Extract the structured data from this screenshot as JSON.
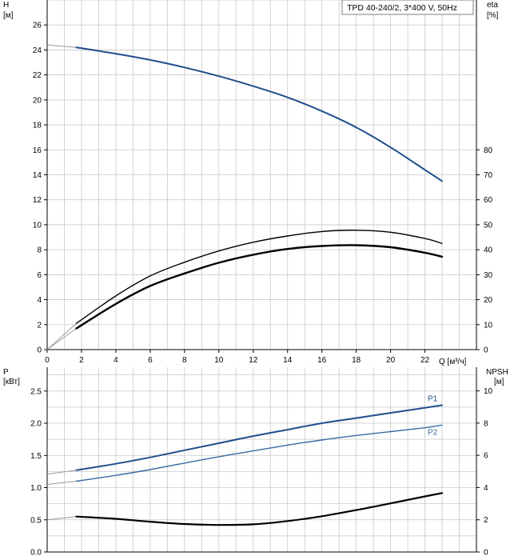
{
  "chart_data": [
    {
      "type": "line",
      "title": "TPD 40-240/2, 3*400 V, 50Hz",
      "xlabel": "Q [м³/ч]",
      "xlim": [
        0,
        25
      ],
      "xticks": [
        0,
        2,
        4,
        6,
        8,
        10,
        12,
        14,
        16,
        18,
        20,
        22
      ],
      "ylabel_left": "H",
      "ylabel_left_unit": "[м]",
      "ylim_left": [
        0,
        28
      ],
      "yticks_left": [
        0,
        2,
        4,
        6,
        8,
        10,
        12,
        14,
        16,
        18,
        20,
        22,
        24,
        26
      ],
      "ylabel_right": "eta",
      "ylabel_right_unit": "[%]",
      "ylim_right": [
        0,
        140
      ],
      "yticks_right": [
        0,
        10,
        20,
        30,
        40,
        50,
        60,
        70,
        80
      ],
      "grid": true,
      "series": [
        {
          "axis": "left",
          "color": "#1f4e8c",
          "x": [
            0,
            1.7,
            4,
            6,
            8,
            10,
            12,
            14,
            16,
            18,
            20,
            22,
            23
          ],
          "y": [
            24.4,
            24.2,
            23.7,
            23.2,
            22.6,
            21.9,
            21.1,
            20.2,
            19.1,
            17.8,
            16.2,
            14.4,
            13.5
          ],
          "extrapolated_until": 1.7
        },
        {
          "axis": "right",
          "color": "#000000",
          "x": [
            0,
            1.7,
            4,
            6,
            8,
            10,
            12,
            14,
            16,
            18,
            20,
            22,
            23
          ],
          "y": [
            0,
            10.5,
            21.5,
            29.5,
            35,
            39.5,
            43,
            45.5,
            47.3,
            47.8,
            47,
            44.5,
            42.5
          ],
          "extrapolated_until": 1.7
        },
        {
          "axis": "right",
          "color": "#000000",
          "x": [
            0,
            1.7,
            4,
            6,
            8,
            10,
            12,
            14,
            16,
            18,
            20,
            22,
            23
          ],
          "y": [
            0,
            8.5,
            18.3,
            25.5,
            30.5,
            34.8,
            38,
            40.3,
            41.5,
            41.8,
            41,
            38.8,
            37.2
          ],
          "extrapolated_until": 1.7
        }
      ]
    },
    {
      "type": "line",
      "ylabel_left": "P",
      "ylabel_left_unit": "[кВт]",
      "ylim_left": [
        0,
        2.87
      ],
      "yticks_left": [
        "0.0",
        "0.5",
        "1.0",
        "1.5",
        "2.0",
        "2.5"
      ],
      "ylabel_right": "NPSH",
      "ylabel_right_unit": "[м]",
      "ylim_right": [
        0,
        11.47
      ],
      "yticks_right": [
        0,
        2,
        4,
        6,
        8,
        10
      ],
      "grid": true,
      "series": [
        {
          "name": "P1",
          "axis": "left",
          "color": "#1f4e8c",
          "x": [
            0,
            1.7,
            4,
            6,
            8,
            10,
            12,
            14,
            16,
            18,
            20,
            22,
            23
          ],
          "y": [
            1.21,
            1.27,
            1.37,
            1.47,
            1.58,
            1.69,
            1.8,
            1.9,
            2,
            2.08,
            2.16,
            2.24,
            2.28
          ],
          "extrapolated_until": 1.7
        },
        {
          "name": "P2",
          "axis": "left",
          "color": "#3a6aa5",
          "x": [
            0,
            1.7,
            4,
            6,
            8,
            10,
            12,
            14,
            16,
            18,
            20,
            22,
            23
          ],
          "y": [
            1.05,
            1.1,
            1.19,
            1.28,
            1.38,
            1.48,
            1.57,
            1.66,
            1.74,
            1.81,
            1.87,
            1.93,
            1.97
          ],
          "extrapolated_until": 1.7
        },
        {
          "axis": "right",
          "color": "#000000",
          "x": [
            0,
            1.7,
            4,
            6,
            8,
            10,
            12,
            14,
            16,
            18,
            20,
            22,
            23
          ],
          "y": [
            2,
            2.2,
            2.06,
            1.88,
            1.74,
            1.68,
            1.72,
            1.92,
            2.22,
            2.6,
            3.02,
            3.45,
            3.66
          ],
          "extrapolated_until": 1.7
        }
      ]
    }
  ]
}
